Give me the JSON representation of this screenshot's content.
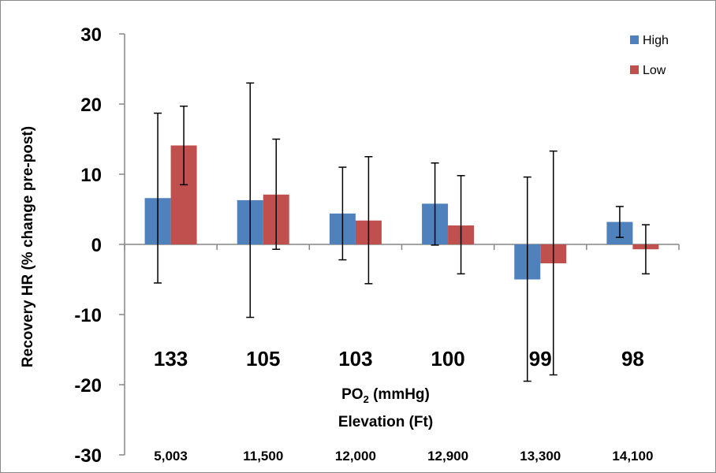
{
  "chart_data": {
    "type": "bar",
    "categories": [
      "133",
      "105",
      "103",
      "100",
      "99",
      "98"
    ],
    "secondary_categories": [
      "5,003",
      "11,500",
      "12,000",
      "12,900",
      "13,300",
      "14,100"
    ],
    "series": [
      {
        "name": "High",
        "color": "#4f81bd",
        "values": [
          6.6,
          6.3,
          4.4,
          5.8,
          -5.0,
          3.2
        ],
        "error_low": [
          -5.5,
          -10.4,
          -2.2,
          -0.1,
          -19.5,
          1.0
        ],
        "error_high": [
          18.7,
          23.0,
          11.0,
          11.6,
          9.6,
          5.4
        ]
      },
      {
        "name": "Low",
        "color": "#c0504d",
        "values": [
          14.1,
          7.1,
          3.4,
          2.7,
          -2.7,
          -0.7
        ],
        "error_low": [
          8.5,
          -0.7,
          -5.6,
          -4.2,
          -18.6,
          -4.2
        ],
        "error_high": [
          19.7,
          15.0,
          12.5,
          9.8,
          13.3,
          2.8
        ]
      }
    ],
    "ylabel": "Recovery HR (% change pre-post)",
    "xlabel_line1": "PO",
    "xlabel_sub": "2",
    "xlabel_line1_suffix": " (mmHg)",
    "xlabel_line2": "Elevation (Ft)",
    "ylim": [
      -30,
      30
    ],
    "yticks": [
      "30",
      "20",
      "10",
      "0",
      "-10",
      "-20",
      "-30"
    ],
    "ytick_values": [
      30,
      20,
      10,
      0,
      -10,
      -20,
      -30
    ],
    "legend_position": "top-right",
    "grid": false
  }
}
